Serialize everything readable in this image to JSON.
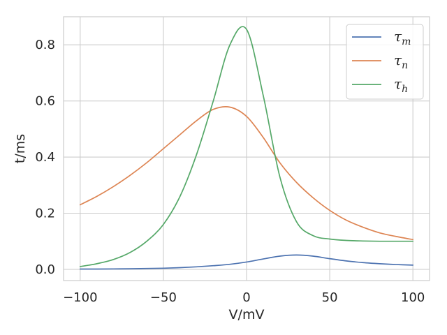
{
  "chart_data": {
    "type": "line",
    "xlabel": "V/mV",
    "ylabel": "t/ms",
    "xlim": [
      -110,
      110
    ],
    "ylim": [
      -0.04,
      0.9
    ],
    "xticks": [
      -100,
      -50,
      0,
      50,
      100
    ],
    "xtick_labels": [
      "−100",
      "−50",
      "0",
      "50",
      "100"
    ],
    "yticks": [
      0.0,
      0.2,
      0.4,
      0.6,
      0.8
    ],
    "ytick_labels": [
      "0.0",
      "0.2",
      "0.4",
      "0.6",
      "0.8"
    ],
    "grid": true,
    "legend_position": "top-right",
    "x": [
      -100,
      -90,
      -80,
      -70,
      -60,
      -50,
      -40,
      -30,
      -20,
      -10,
      0,
      10,
      20,
      30,
      40,
      50,
      60,
      70,
      80,
      90,
      100
    ],
    "series": [
      {
        "name": "τ",
        "subscript": "m",
        "color": "#4c72b0",
        "values": [
          0.001,
          0.001,
          0.0015,
          0.002,
          0.003,
          0.004,
          0.006,
          0.009,
          0.013,
          0.018,
          0.026,
          0.037,
          0.047,
          0.051,
          0.047,
          0.038,
          0.03,
          0.024,
          0.02,
          0.017,
          0.015
        ]
      },
      {
        "name": "τ",
        "subscript": "n",
        "color": "#dd8452",
        "values": [
          0.23,
          0.26,
          0.295,
          0.335,
          0.38,
          0.43,
          0.48,
          0.53,
          0.57,
          0.578,
          0.545,
          0.47,
          0.38,
          0.31,
          0.255,
          0.21,
          0.175,
          0.15,
          0.13,
          0.117,
          0.106
        ]
      },
      {
        "name": "τ",
        "subscript": "h",
        "color": "#55a868",
        "values": [
          0.01,
          0.02,
          0.035,
          0.06,
          0.1,
          0.16,
          0.26,
          0.41,
          0.6,
          0.8,
          0.855,
          0.62,
          0.33,
          0.17,
          0.12,
          0.108,
          0.103,
          0.101,
          0.1,
          0.1,
          0.1
        ]
      }
    ]
  }
}
